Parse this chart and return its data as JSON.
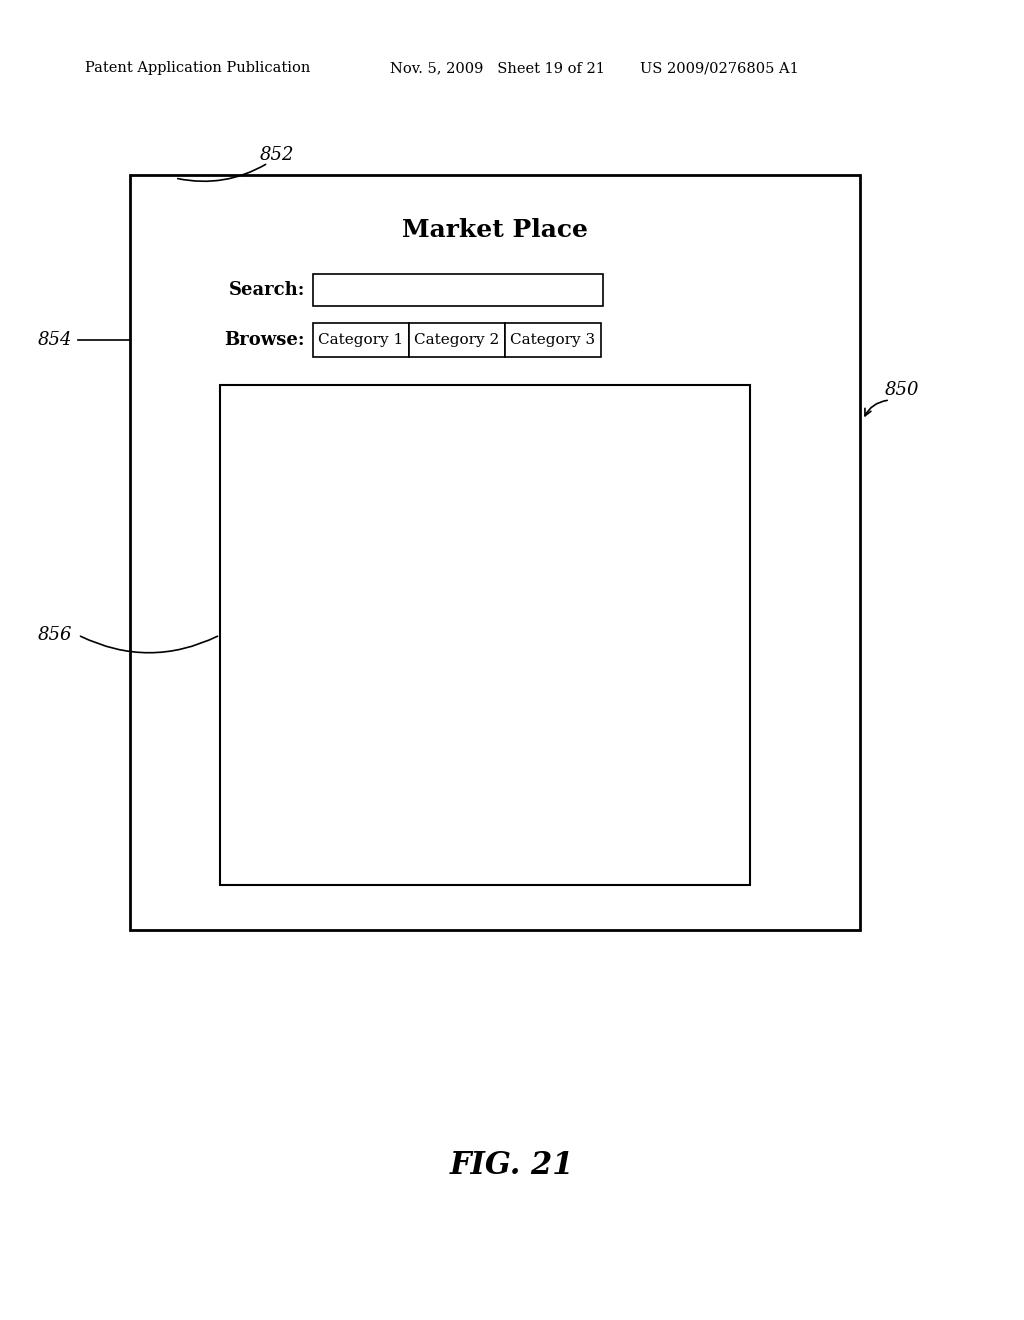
{
  "bg_color": "#ffffff",
  "header_text_left": "Patent Application Publication",
  "header_text_mid": "Nov. 5, 2009   Sheet 19 of 21",
  "header_text_right": "US 2009/0276805 A1",
  "header_fontsize": 10.5,
  "fig_label": "FIG. 21",
  "fig_label_fontsize": 22,
  "title": "Market Place",
  "title_fontsize": 18,
  "label_850": "850",
  "label_852": "852",
  "label_854": "854",
  "label_856": "856",
  "search_label": "Search:",
  "browse_label": "Browse:",
  "categories": [
    "Category 1",
    "Category 2",
    "Category 3"
  ],
  "annotation_fontsize": 13,
  "cat_fontsize": 11,
  "bold_label_fontsize": 13
}
